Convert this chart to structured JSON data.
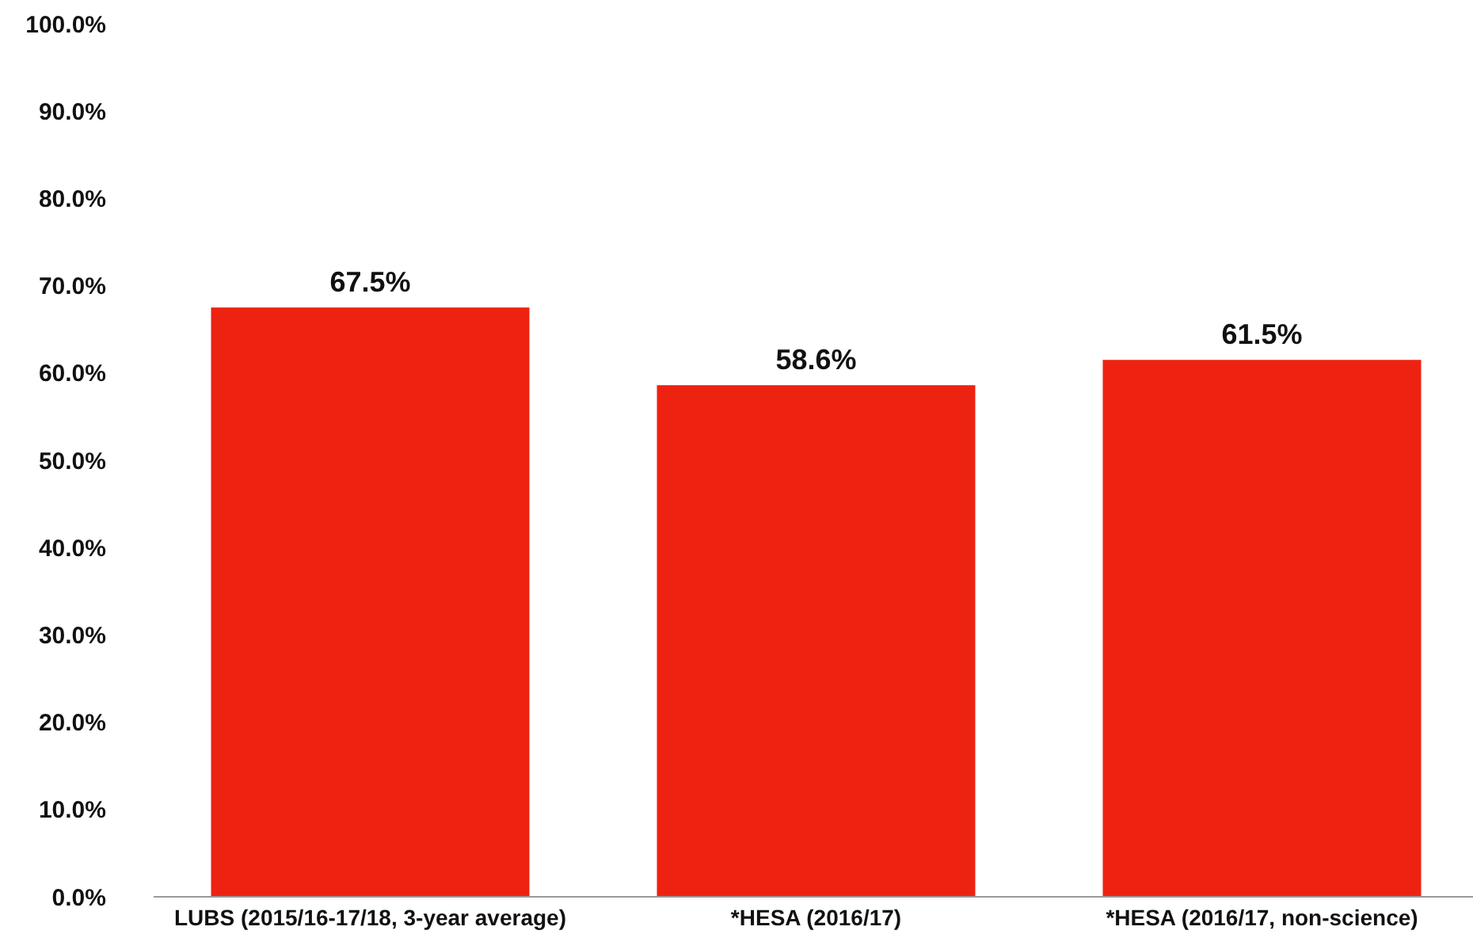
{
  "chart_data": {
    "type": "bar",
    "categories": [
      "LUBS (2015/16-17/18, 3-year average)",
      "*HESA  (2016/17)",
      "*HESA (2016/17, non-science)"
    ],
    "values": [
      67.5,
      58.6,
      61.5
    ],
    "color": "#ee2211",
    "value_labels": [
      "67.5%",
      "58.6%",
      "61.5%"
    ],
    "ylim": [
      0,
      100
    ],
    "yticks": [
      {
        "value": 0,
        "label": "0.0%"
      },
      {
        "value": 10,
        "label": "10.0%"
      },
      {
        "value": 20,
        "label": "20.0%"
      },
      {
        "value": 30,
        "label": "30.0%"
      },
      {
        "value": 40,
        "label": "40.0%"
      },
      {
        "value": 50,
        "label": "50.0%"
      },
      {
        "value": 60,
        "label": "60.0%"
      },
      {
        "value": 70,
        "label": "70.0%"
      },
      {
        "value": 80,
        "label": "80.0%"
      },
      {
        "value": 90,
        "label": "90.0%"
      },
      {
        "value": 100,
        "label": "100.0%"
      }
    ],
    "grid": false
  }
}
